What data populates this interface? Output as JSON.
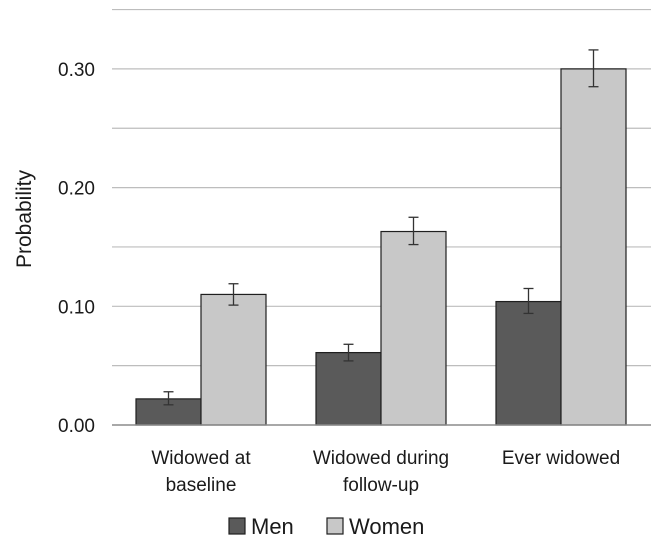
{
  "chart_data": {
    "type": "bar",
    "title": "",
    "xlabel": "",
    "ylabel": "Probability",
    "categories": [
      [
        "Widowed at",
        "baseline"
      ],
      [
        "Widowed during",
        "follow-up"
      ],
      [
        "Ever widowed"
      ]
    ],
    "series": [
      {
        "name": "Men",
        "color": "#5a5a5a",
        "values": [
          0.022,
          0.061,
          0.104
        ],
        "error_low": [
          0.017,
          0.054,
          0.094
        ],
        "error_high": [
          0.028,
          0.068,
          0.115
        ]
      },
      {
        "name": "Women",
        "color": "#c8c8c8",
        "values": [
          0.11,
          0.163,
          0.3
        ],
        "error_low": [
          0.101,
          0.152,
          0.285
        ],
        "error_high": [
          0.119,
          0.175,
          0.316
        ]
      }
    ],
    "ylim": [
      0,
      0.35
    ],
    "yticks": [
      "0.00",
      "0.10",
      "0.20",
      "0.30"
    ],
    "ytick_values": [
      0,
      0.1,
      0.2,
      0.3
    ],
    "minor_gridlines": [
      0.05,
      0.15,
      0.25,
      0.35
    ],
    "grid": true,
    "legend_position": "bottom-center"
  }
}
